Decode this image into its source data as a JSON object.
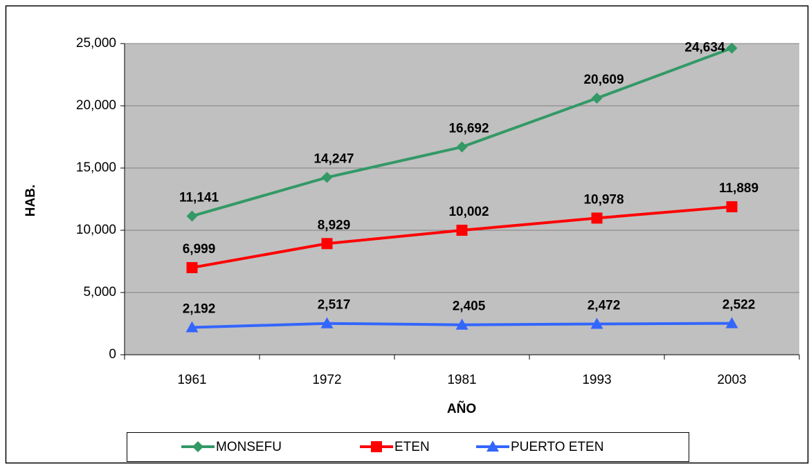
{
  "chart_data": {
    "type": "line",
    "categories": [
      "1961",
      "1972",
      "1981",
      "1993",
      "2003"
    ],
    "x_label": "AÑO",
    "y_label": "HAB.",
    "ylim": [
      0,
      25000
    ],
    "yticks": [
      0,
      {
        "value": 5000,
        "label": "5,000"
      },
      {
        "value": 10000,
        "label": "10,000"
      },
      {
        "value": 15000,
        "label": "15,000"
      },
      {
        "value": 20000,
        "label": "20,000"
      },
      {
        "value": 25000,
        "label": "25,000"
      }
    ],
    "grid": true,
    "legend": "bottom",
    "series": [
      {
        "name": "MONSEFU",
        "color": "#339966",
        "marker": "diamond",
        "values": [
          11141,
          14247,
          16692,
          20609,
          24634
        ],
        "value_labels": [
          "11,141",
          "14,247",
          "16,692",
          "20,609",
          "24,634"
        ]
      },
      {
        "name": "ETEN",
        "color": "#ff0000",
        "marker": "square",
        "values": [
          6999,
          8929,
          10002,
          10978,
          11889
        ],
        "value_labels": [
          "6,999",
          "8,929",
          "10,002",
          "10,978",
          "11,889"
        ]
      },
      {
        "name": "PUERTO ETEN",
        "color": "#3366ff",
        "marker": "triangle",
        "values": [
          2192,
          2517,
          2405,
          2472,
          2522
        ],
        "value_labels": [
          "2,192",
          "2,517",
          "2,405",
          "2,472",
          "2,522"
        ]
      }
    ]
  }
}
